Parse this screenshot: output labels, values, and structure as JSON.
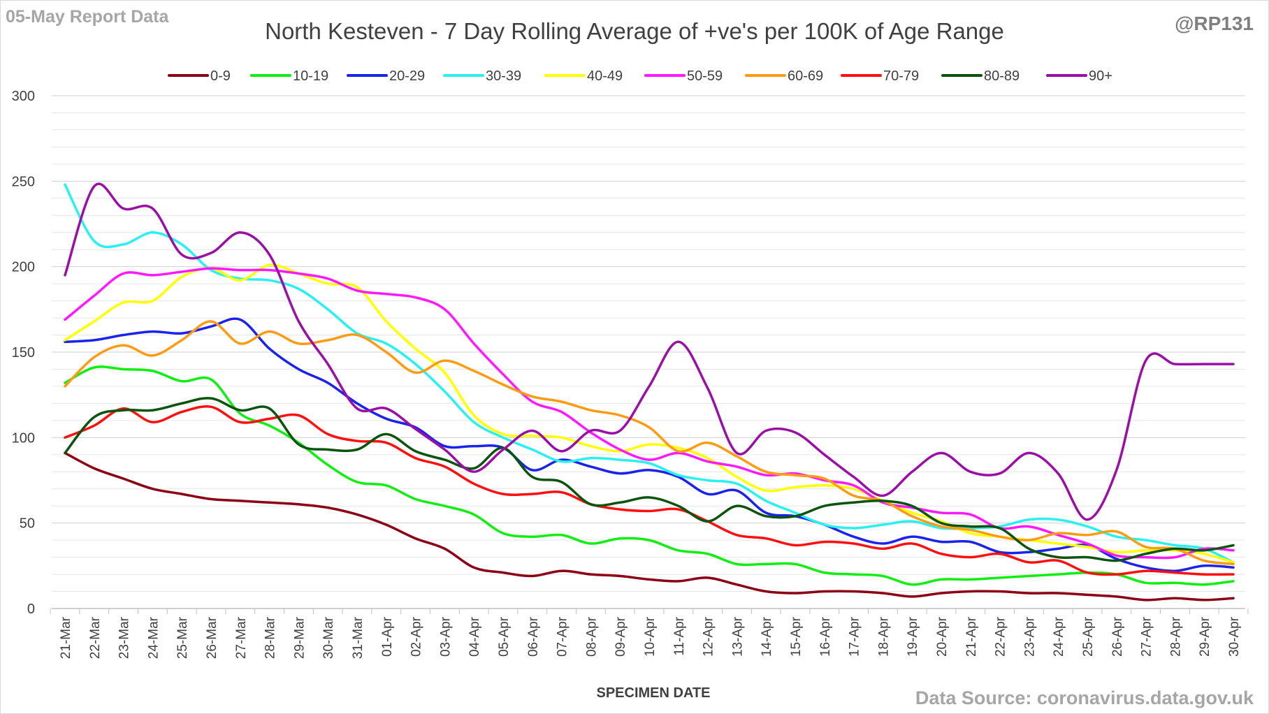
{
  "report_label": "05-May Report Data",
  "handle": "@RP131",
  "source_label": "Data Source: coronavirus.data.gov.uk",
  "chart_data": {
    "type": "line",
    "title": "North Kesteven - 7 Day Rolling Average of +ve's per 100K of Age Range",
    "xlabel": "SPECIMEN DATE",
    "ylabel": "",
    "ylim": [
      0,
      300
    ],
    "yticks": [
      0,
      50,
      100,
      150,
      200,
      250,
      300
    ],
    "grid": true,
    "legend_position": "top",
    "categories": [
      "21-Mar",
      "22-Mar",
      "23-Mar",
      "24-Mar",
      "25-Mar",
      "26-Mar",
      "27-Mar",
      "28-Mar",
      "29-Mar",
      "30-Mar",
      "31-Mar",
      "01-Apr",
      "02-Apr",
      "03-Apr",
      "04-Apr",
      "05-Apr",
      "06-Apr",
      "07-Apr",
      "08-Apr",
      "09-Apr",
      "10-Apr",
      "11-Apr",
      "12-Apr",
      "13-Apr",
      "14-Apr",
      "15-Apr",
      "16-Apr",
      "17-Apr",
      "18-Apr",
      "19-Apr",
      "20-Apr",
      "21-Apr",
      "22-Apr",
      "23-Apr",
      "24-Apr",
      "25-Apr",
      "26-Apr",
      "27-Apr",
      "28-Apr",
      "29-Apr",
      "30-Apr"
    ],
    "series": [
      {
        "name": "0-9",
        "color": "#8b0015",
        "values": [
          91,
          82,
          76,
          70,
          67,
          64,
          63,
          62,
          61,
          59,
          55,
          49,
          41,
          35,
          24,
          21,
          19,
          22,
          20,
          19,
          17,
          16,
          18,
          14,
          10,
          9,
          10,
          10,
          9,
          7,
          9,
          10,
          10,
          9,
          9,
          8,
          7,
          5,
          6,
          5,
          6
        ]
      },
      {
        "name": "10-19",
        "color": "#11ee11",
        "values": [
          132,
          141,
          140,
          139,
          133,
          134,
          114,
          107,
          97,
          84,
          74,
          72,
          64,
          60,
          55,
          44,
          42,
          43,
          38,
          41,
          40,
          34,
          32,
          26,
          26,
          26,
          21,
          20,
          19,
          14,
          17,
          17,
          18,
          19,
          20,
          21,
          20,
          15,
          15,
          14,
          16
        ]
      },
      {
        "name": "20-29",
        "color": "#1a23ea",
        "values": [
          156,
          157,
          160,
          162,
          161,
          165,
          169,
          152,
          140,
          132,
          120,
          111,
          106,
          95,
          95,
          94,
          81,
          87,
          83,
          79,
          81,
          77,
          67,
          69,
          56,
          54,
          49,
          42,
          38,
          42,
          39,
          39,
          33,
          33,
          35,
          37,
          29,
          24,
          22,
          25,
          24
        ]
      },
      {
        "name": "30-39",
        "color": "#2af0f2",
        "values": [
          248,
          215,
          213,
          220,
          213,
          198,
          193,
          192,
          187,
          175,
          161,
          155,
          143,
          127,
          109,
          100,
          93,
          86,
          88,
          87,
          85,
          78,
          75,
          73,
          63,
          56,
          49,
          47,
          49,
          51,
          47,
          47,
          48,
          52,
          52,
          48,
          42,
          40,
          37,
          35,
          27
        ]
      },
      {
        "name": "40-49",
        "color": "#ffff00",
        "values": [
          157,
          168,
          179,
          180,
          194,
          199,
          192,
          201,
          196,
          190,
          188,
          168,
          152,
          138,
          113,
          102,
          101,
          100,
          95,
          92,
          96,
          94,
          88,
          77,
          69,
          71,
          72,
          70,
          63,
          56,
          51,
          44,
          42,
          40,
          38,
          36,
          33,
          34,
          34,
          32,
          27
        ]
      },
      {
        "name": "50-59",
        "color": "#ff19ff",
        "values": [
          169,
          183,
          196,
          195,
          197,
          199,
          198,
          198,
          196,
          193,
          186,
          184,
          182,
          175,
          155,
          137,
          121,
          115,
          103,
          93,
          87,
          91,
          86,
          83,
          78,
          79,
          75,
          72,
          62,
          59,
          56,
          55,
          47,
          48,
          43,
          38,
          31,
          30,
          30,
          35,
          34
        ]
      },
      {
        "name": "60-69",
        "color": "#fd9b15",
        "values": [
          130,
          147,
          154,
          148,
          157,
          168,
          155,
          162,
          155,
          157,
          160,
          150,
          138,
          145,
          139,
          131,
          124,
          121,
          116,
          113,
          106,
          92,
          97,
          89,
          80,
          78,
          76,
          66,
          63,
          54,
          48,
          46,
          42,
          40,
          44,
          43,
          45,
          36,
          35,
          28,
          26
        ]
      },
      {
        "name": "70-79",
        "color": "#ff0f0f",
        "values": [
          100,
          107,
          117,
          109,
          115,
          118,
          109,
          111,
          113,
          102,
          98,
          97,
          88,
          83,
          73,
          67,
          67,
          68,
          61,
          58,
          57,
          58,
          51,
          43,
          41,
          37,
          39,
          38,
          35,
          38,
          32,
          30,
          32,
          27,
          28,
          21,
          20,
          22,
          21,
          20,
          20
        ]
      },
      {
        "name": "80-89",
        "color": "#0a540e",
        "values": [
          91,
          112,
          116,
          116,
          120,
          123,
          116,
          117,
          96,
          93,
          93,
          102,
          92,
          87,
          82,
          94,
          77,
          74,
          61,
          62,
          65,
          60,
          51,
          60,
          54,
          54,
          60,
          62,
          63,
          60,
          50,
          48,
          47,
          35,
          30,
          30,
          28,
          32,
          35,
          34,
          37
        ]
      },
      {
        "name": "90+",
        "color": "#9a0fa5",
        "values": [
          195,
          247,
          234,
          234,
          207,
          208,
          220,
          207,
          168,
          143,
          117,
          117,
          105,
          93,
          80,
          93,
          104,
          92,
          104,
          104,
          130,
          156,
          129,
          91,
          104,
          103,
          90,
          77,
          66,
          80,
          91,
          80,
          79,
          91,
          79,
          52,
          81,
          145,
          143,
          143,
          143
        ]
      }
    ]
  }
}
